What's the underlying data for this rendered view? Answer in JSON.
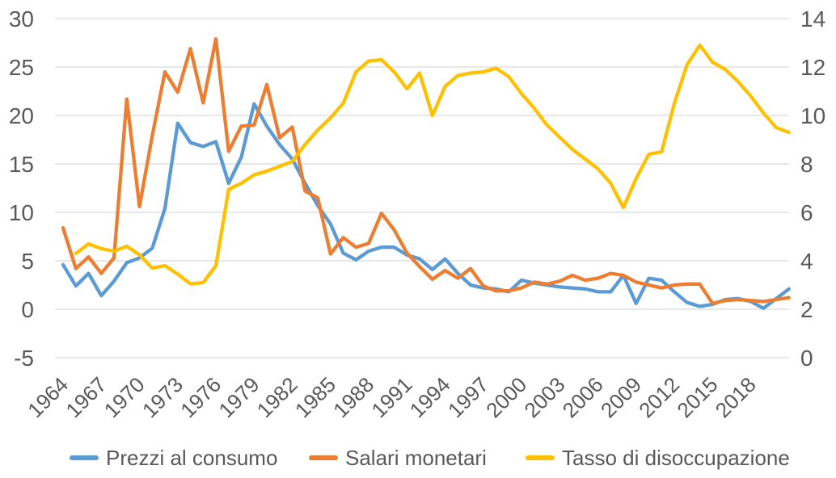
{
  "chart_data": {
    "type": "line",
    "title": "",
    "xlabel": "",
    "ylabel_left": "",
    "ylabel_right": "",
    "x_start_year": 1964,
    "x_end_year": 2021,
    "x_tick_years": [
      1964,
      1967,
      1970,
      1973,
      1976,
      1979,
      1982,
      1985,
      1988,
      1991,
      1994,
      1997,
      2000,
      2003,
      2006,
      2009,
      2012,
      2015,
      2018
    ],
    "axes": {
      "left": {
        "min": -5,
        "max": 30,
        "ticks": [
          30,
          25,
          20,
          15,
          10,
          5,
          0,
          -5
        ]
      },
      "right": {
        "min": 0,
        "max": 14,
        "ticks": [
          14,
          12,
          10,
          8,
          6,
          4,
          2,
          0
        ]
      }
    },
    "grid": true,
    "legend_position": "bottom",
    "grid_color": "#D9D9D9",
    "text_color": "#595959",
    "series": [
      {
        "name": "Prezzi al consumo",
        "color": "#5B9BD5",
        "axis": "left",
        "values": [
          4.6,
          2.4,
          3.7,
          1.4,
          2.9,
          4.8,
          5.3,
          6.3,
          10.4,
          19.2,
          17.2,
          16.8,
          17.3,
          13.0,
          15.7,
          21.2,
          18.9,
          17.0,
          15.5,
          13.0,
          10.7,
          8.8,
          5.8,
          5.1,
          6.0,
          6.4,
          6.4,
          5.6,
          5.2,
          4.1,
          5.2,
          3.7,
          2.5,
          2.2,
          2.1,
          1.8,
          3.0,
          2.7,
          2.5,
          2.3,
          2.2,
          2.1,
          1.8,
          1.8,
          3.5,
          0.6,
          3.2,
          3.0,
          1.8,
          0.7,
          0.3,
          0.5,
          1.0,
          1.1,
          0.8,
          0.1,
          1.1,
          2.1
        ]
      },
      {
        "name": "Salari monetari",
        "color": "#ED7D31",
        "axis": "left",
        "values": [
          8.4,
          4.2,
          5.4,
          3.7,
          5.3,
          21.7,
          10.6,
          17.9,
          24.5,
          22.4,
          26.9,
          21.3,
          27.9,
          16.3,
          18.9,
          19.0,
          23.2,
          17.7,
          18.8,
          12.2,
          11.5,
          5.7,
          7.4,
          6.4,
          6.8,
          9.9,
          8.2,
          5.8,
          4.4,
          3.1,
          4.0,
          3.2,
          4.2,
          2.4,
          1.9,
          1.9,
          2.2,
          2.8,
          2.6,
          2.9,
          3.5,
          3.0,
          3.2,
          3.7,
          3.5,
          2.8,
          2.5,
          2.2,
          2.5,
          2.6,
          2.6,
          0.6,
          0.9,
          1.0,
          0.9,
          0.8,
          1.0,
          1.2
        ]
      },
      {
        "name": "Tasso di disoccupazione",
        "color": "#FFC000",
        "axis": "right",
        "values": [
          null,
          4.3,
          4.7,
          4.5,
          4.4,
          4.6,
          4.25,
          3.7,
          3.8,
          3.45,
          3.05,
          3.1,
          3.8,
          6.95,
          7.2,
          7.55,
          7.7,
          7.9,
          8.1,
          8.8,
          9.4,
          9.9,
          10.5,
          11.8,
          12.25,
          12.3,
          11.8,
          11.1,
          11.75,
          10.0,
          11.2,
          11.65,
          11.75,
          11.8,
          11.95,
          11.6,
          10.9,
          10.3,
          9.6,
          9.1,
          8.6,
          8.2,
          7.8,
          7.2,
          6.2,
          7.4,
          8.4,
          8.5,
          10.5,
          12.1,
          12.9,
          12.2,
          11.9,
          11.4,
          10.8,
          10.1,
          9.5,
          9.3
        ]
      }
    ]
  },
  "legend": {
    "items": [
      {
        "label": "Prezzi al consumo"
      },
      {
        "label": "Salari monetari"
      },
      {
        "label": "Tasso di disoccupazione"
      }
    ]
  }
}
